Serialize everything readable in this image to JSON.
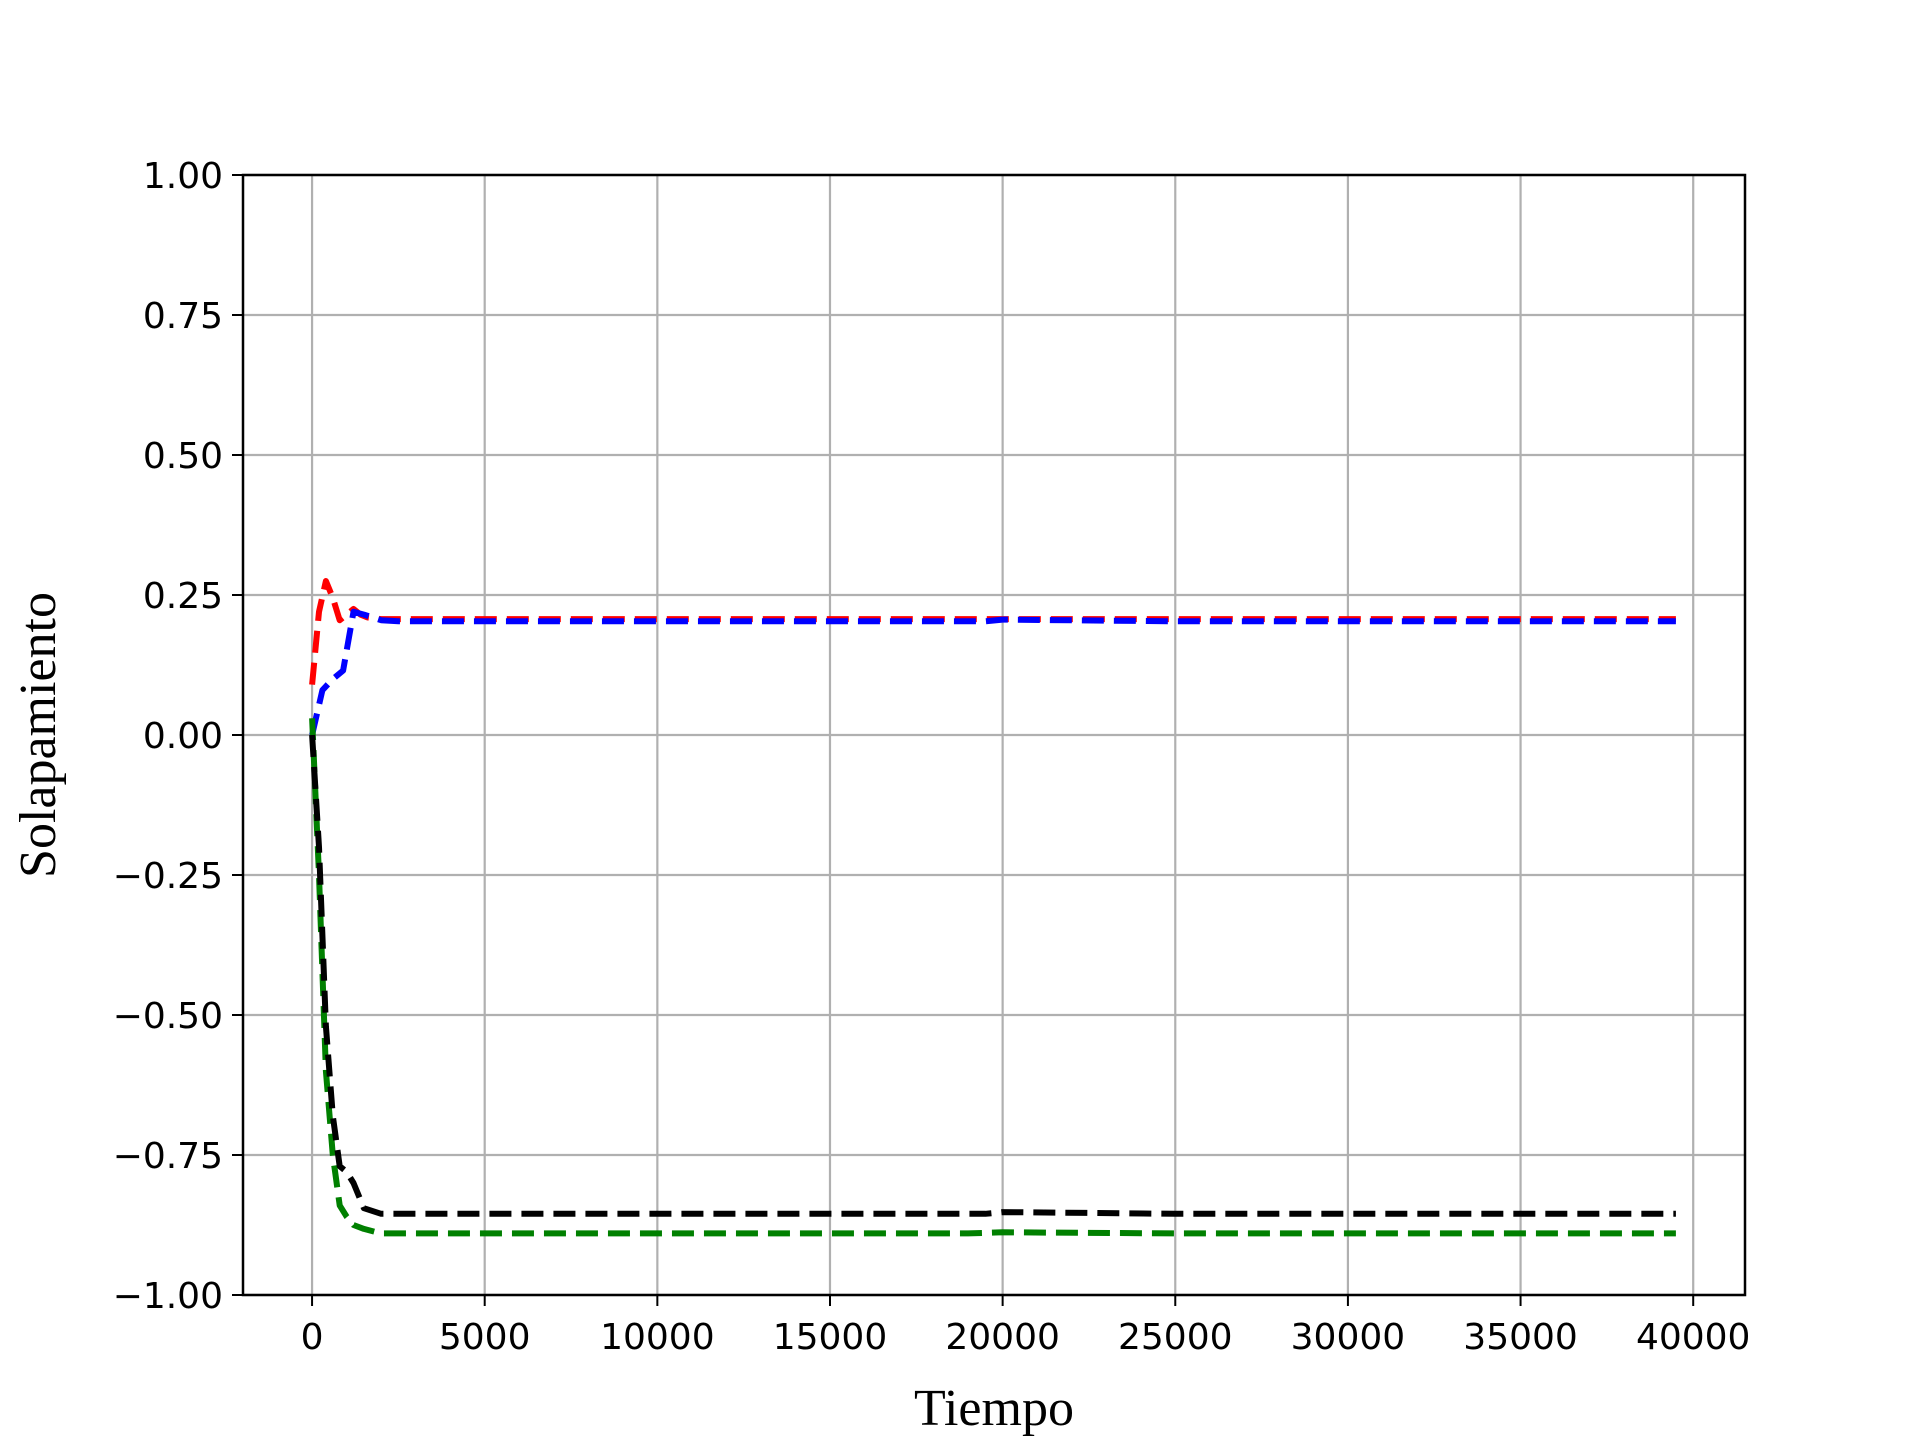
{
  "chart_data": {
    "type": "line",
    "title": "",
    "xlabel": "Tiempo",
    "ylabel": "Solapamiento",
    "xlim": [
      -2000,
      41500
    ],
    "ylim": [
      -1.0,
      1.0
    ],
    "xticks": [
      0,
      5000,
      10000,
      15000,
      20000,
      25000,
      30000,
      35000,
      40000
    ],
    "xtick_labels": [
      "0",
      "5000",
      "10000",
      "15000",
      "20000",
      "25000",
      "30000",
      "35000",
      "40000"
    ],
    "yticks": [
      -1.0,
      -0.75,
      -0.5,
      -0.25,
      0.0,
      0.25,
      0.5,
      0.75,
      1.0
    ],
    "ytick_labels": [
      "−1.00",
      "−0.75",
      "−0.50",
      "−0.25",
      "0.00",
      "0.25",
      "0.50",
      "0.75",
      "1.00"
    ],
    "grid": true,
    "legend": "none",
    "series": [
      {
        "color": "#ff0000",
        "style": "dashed",
        "x": [
          0,
          200,
          400,
          600,
          800,
          1000,
          1200,
          1400,
          1600,
          2000,
          3000,
          5000,
          10000,
          15000,
          20000,
          25000,
          30000,
          35000,
          39500
        ],
        "y": [
          0.09,
          0.22,
          0.275,
          0.245,
          0.205,
          0.215,
          0.225,
          0.215,
          0.21,
          0.207,
          0.207,
          0.207,
          0.207,
          0.207,
          0.207,
          0.207,
          0.207,
          0.207,
          0.207
        ]
      },
      {
        "color": "#0000ff",
        "style": "dashed",
        "x": [
          0,
          300,
          600,
          900,
          1200,
          1500,
          2000,
          2500,
          3000,
          5000,
          10000,
          15000,
          19500,
          20000,
          25000,
          30000,
          35000,
          39500
        ],
        "y": [
          0.0,
          0.08,
          0.1,
          0.115,
          0.22,
          0.215,
          0.205,
          0.203,
          0.203,
          0.203,
          0.203,
          0.203,
          0.203,
          0.206,
          0.203,
          0.203,
          0.203,
          0.203
        ]
      },
      {
        "color": "#008000",
        "style": "dashed",
        "x": [
          0,
          200,
          400,
          600,
          800,
          1000,
          1200,
          1500,
          2000,
          3000,
          5000,
          10000,
          15000,
          19000,
          20000,
          25000,
          30000,
          35000,
          39500
        ],
        "y": [
          0.03,
          -0.25,
          -0.6,
          -0.75,
          -0.84,
          -0.86,
          -0.875,
          -0.882,
          -0.89,
          -0.89,
          -0.89,
          -0.89,
          -0.89,
          -0.89,
          -0.888,
          -0.89,
          -0.89,
          -0.89,
          -0.89
        ]
      },
      {
        "color": "#000000",
        "style": "dashed",
        "x": [
          0,
          200,
          400,
          600,
          800,
          1000,
          1200,
          1500,
          2000,
          3000,
          5000,
          10000,
          15000,
          19500,
          20000,
          25000,
          30000,
          35000,
          39500
        ],
        "y": [
          0.0,
          -0.2,
          -0.52,
          -0.68,
          -0.77,
          -0.78,
          -0.8,
          -0.845,
          -0.855,
          -0.855,
          -0.855,
          -0.855,
          -0.855,
          -0.855,
          -0.852,
          -0.855,
          -0.855,
          -0.855,
          -0.855
        ]
      }
    ]
  }
}
